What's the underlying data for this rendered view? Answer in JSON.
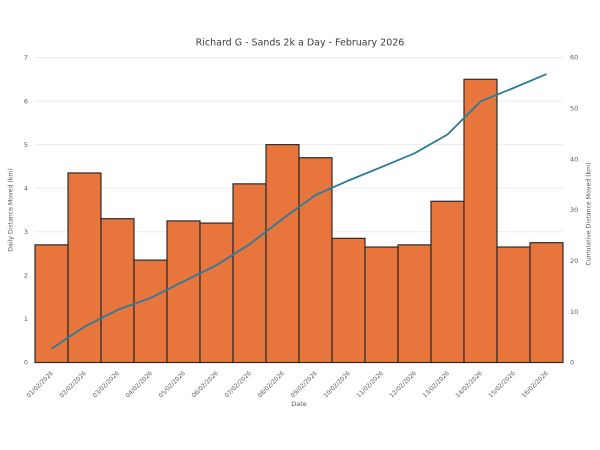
{
  "chart_data": {
    "type": "bar",
    "title": "Richard G - Sands 2k a Day - February 2026",
    "xlabel": "Date",
    "ylabel_left": "Daily Distance Moved (km)",
    "ylabel_right": "Cumulative Distance Moved (km)",
    "categories": [
      "01/02/2026",
      "02/02/2026",
      "03/02/2026",
      "04/02/2026",
      "05/02/2026",
      "06/02/2026",
      "07/02/2026",
      "08/02/2026",
      "09/02/2026",
      "10/02/2026",
      "11/02/2026",
      "12/02/2026",
      "13/02/2026",
      "14/02/2026",
      "15/02/2026",
      "16/02/2026"
    ],
    "series": [
      {
        "name": "Daily Distance Moved (km)",
        "type": "bar",
        "axis": "left",
        "values": [
          2.7,
          4.35,
          3.3,
          2.35,
          3.25,
          3.2,
          4.1,
          5.0,
          4.7,
          2.85,
          2.65,
          2.7,
          3.7,
          6.5,
          2.65,
          2.75
        ]
      },
      {
        "name": "Cumulative Distance Moved (km)",
        "type": "line",
        "axis": "right",
        "values": [
          2.7,
          7.05,
          10.35,
          12.7,
          15.95,
          19.15,
          23.25,
          28.25,
          32.95,
          35.8,
          38.45,
          41.15,
          44.85,
          51.35,
          54.0,
          56.75
        ]
      }
    ],
    "ylim_left": [
      0,
      7
    ],
    "yticks_left": [
      0,
      1,
      2,
      3,
      4,
      5,
      6,
      7
    ],
    "ylim_right": [
      0,
      60
    ],
    "yticks_right": [
      0,
      10,
      20,
      30,
      40,
      50,
      60
    ],
    "grid": true,
    "legend": "none",
    "colors": {
      "bar_fill": "#E8763C",
      "bar_edge": "#2B2B2B",
      "line": "#2A7B9C",
      "grid": "#EBEBEB",
      "title_text": "#3C3C3C",
      "tick_text": "#5A5A5A"
    }
  }
}
